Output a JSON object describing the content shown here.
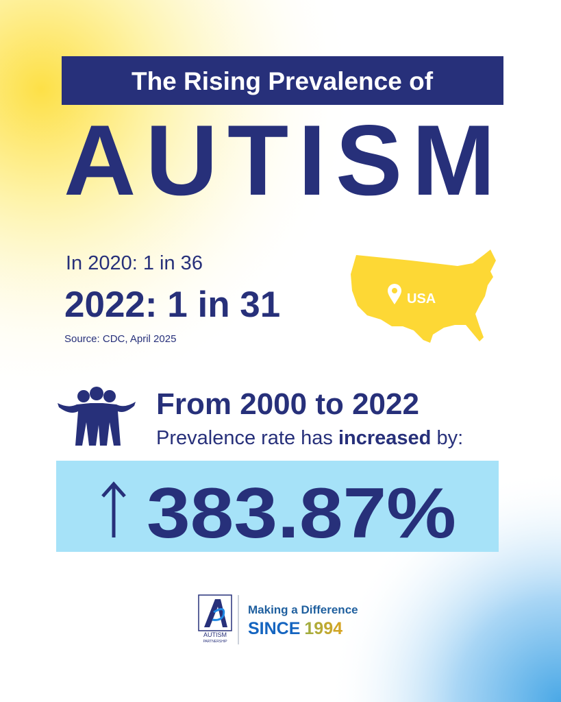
{
  "header": {
    "title": "The Rising Prevalence of",
    "headline": "AUTISM"
  },
  "stats": {
    "previous": "In 2020: 1 in 36",
    "current": "2022: 1 in 31",
    "source": "Source: CDC, April 2025",
    "map_label": "USA"
  },
  "change": {
    "heading": "From 2000 to 2022",
    "text_parts": [
      "Prevalence rate has ",
      "increased",
      " by:"
    ],
    "value": "383.87%"
  },
  "footer": {
    "logo_name": "AUTISM",
    "logo_sub": "PARTNERSHIP",
    "tagline": "Making a Difference",
    "since": "SINCE",
    "year": "1994"
  }
}
